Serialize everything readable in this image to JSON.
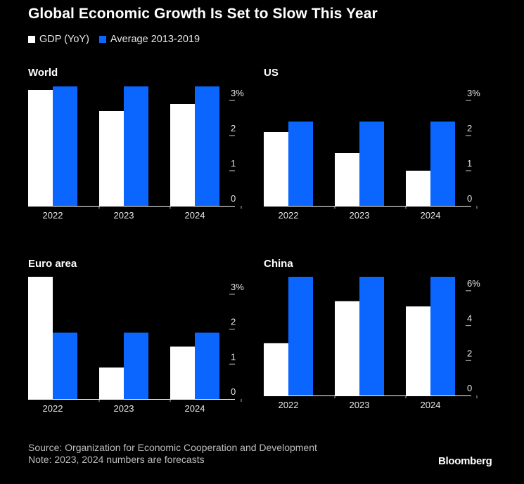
{
  "title": "Global Economic Growth Is Set to Slow This Year",
  "legend": [
    {
      "label": "GDP (YoY)",
      "color": "#ffffff"
    },
    {
      "label": "Average 2013-2019",
      "color": "#0a66ff"
    }
  ],
  "colors": {
    "gdp": "#ffffff",
    "average": "#0a66ff",
    "background": "#000000",
    "axis": "#ffffff"
  },
  "footer": {
    "source": "Source: Organization for Economic Cooperation and Development",
    "note": "Note: 2023, 2024 numbers are forecasts"
  },
  "brand": "Bloomberg",
  "chart_data": [
    {
      "type": "bar",
      "title": "World",
      "categories": [
        "2022",
        "2023",
        "2024"
      ],
      "series": [
        {
          "name": "GDP (YoY)",
          "values": [
            3.3,
            2.7,
            2.9
          ]
        },
        {
          "name": "Average 2013-2019",
          "values": [
            3.4,
            3.4,
            3.4
          ]
        }
      ],
      "y_ticks": [
        0,
        1,
        2,
        3
      ],
      "y_tick_labels": [
        "0",
        "1",
        "2",
        "3%"
      ],
      "ylim": [
        0,
        3.4
      ],
      "grid": false,
      "axis_side": "right"
    },
    {
      "type": "bar",
      "title": "US",
      "categories": [
        "2022",
        "2023",
        "2024"
      ],
      "series": [
        {
          "name": "GDP (YoY)",
          "values": [
            2.1,
            1.5,
            1.0
          ]
        },
        {
          "name": "Average 2013-2019",
          "values": [
            2.4,
            2.4,
            2.4
          ]
        }
      ],
      "y_ticks": [
        0,
        1,
        2,
        3
      ],
      "y_tick_labels": [
        "0",
        "1",
        "2",
        "3%"
      ],
      "ylim": [
        0,
        3.4
      ],
      "grid": false,
      "axis_side": "right"
    },
    {
      "type": "bar",
      "title": "Euro area",
      "categories": [
        "2022",
        "2023",
        "2024"
      ],
      "series": [
        {
          "name": "GDP (YoY)",
          "values": [
            3.5,
            0.9,
            1.5
          ]
        },
        {
          "name": "Average 2013-2019",
          "values": [
            1.9,
            1.9,
            1.9
          ]
        }
      ],
      "y_ticks": [
        0,
        1,
        2,
        3
      ],
      "y_tick_labels": [
        "0",
        "1",
        "2",
        "3%"
      ],
      "ylim": [
        0,
        3.5
      ],
      "grid": false,
      "axis_side": "right"
    },
    {
      "type": "bar",
      "title": "China",
      "categories": [
        "2022",
        "2023",
        "2024"
      ],
      "series": [
        {
          "name": "GDP (YoY)",
          "values": [
            3.0,
            5.4,
            5.1
          ]
        },
        {
          "name": "Average 2013-2019",
          "values": [
            6.8,
            6.8,
            6.8
          ]
        }
      ],
      "y_ticks": [
        0,
        2,
        4,
        6
      ],
      "y_tick_labels": [
        "0",
        "2",
        "4",
        "6%"
      ],
      "ylim": [
        0,
        6.8
      ],
      "grid": false,
      "axis_side": "right"
    }
  ]
}
